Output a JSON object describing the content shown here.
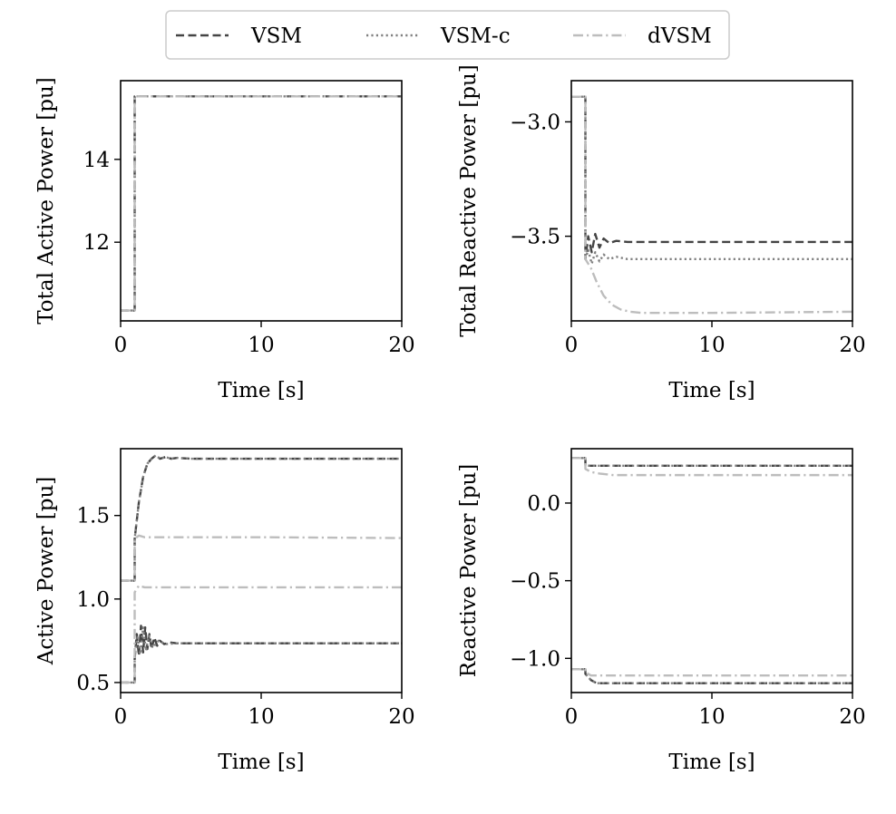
{
  "legend": {
    "entries": [
      {
        "label": "VSM",
        "style": "dashed",
        "color": "#444444"
      },
      {
        "label": "VSM-c",
        "style": "dotted",
        "color": "#808080"
      },
      {
        "label": "dVSM",
        "style": "dashdot",
        "color": "#bdbdbd"
      }
    ]
  },
  "chart_data": [
    {
      "type": "line",
      "xlabel": "Time [s]",
      "ylabel": "Total Active Power [pu]",
      "xlim": [
        0,
        20
      ],
      "ylim": [
        10.1,
        15.9
      ],
      "xticks": [
        0,
        10,
        20
      ],
      "yticks": [
        12,
        14
      ],
      "ytick_labels": [
        "12",
        "14"
      ],
      "series": [
        {
          "name": "VSM",
          "x": [
            0,
            1.0,
            1.0,
            20
          ],
          "y": [
            10.35,
            10.35,
            15.52,
            15.52
          ]
        },
        {
          "name": "VSM-c",
          "x": [
            0,
            1.0,
            1.0,
            20
          ],
          "y": [
            10.35,
            10.35,
            15.52,
            15.52
          ]
        },
        {
          "name": "dVSM",
          "x": [
            0,
            1.0,
            1.0,
            20
          ],
          "y": [
            10.35,
            10.35,
            15.52,
            15.52
          ]
        }
      ]
    },
    {
      "type": "line",
      "xlabel": "Time [s]",
      "ylabel": "Total Reactive Power [pu]",
      "xlim": [
        0,
        20
      ],
      "ylim": [
        -3.87,
        -2.82
      ],
      "xticks": [
        0,
        10,
        20
      ],
      "yticks": [
        -3.5,
        -3.0
      ],
      "ytick_labels": [
        "−3.5",
        "−3.0"
      ],
      "series": [
        {
          "name": "VSM",
          "x": [
            0,
            1.0,
            1.0,
            1.2,
            1.45,
            1.7,
            2.0,
            2.3,
            2.7,
            3.2,
            4,
            6,
            10,
            20
          ],
          "y": [
            -2.89,
            -2.89,
            -3.6,
            -3.5,
            -3.57,
            -3.49,
            -3.55,
            -3.51,
            -3.53,
            -3.52,
            -3.525,
            -3.525,
            -3.525,
            -3.525
          ]
        },
        {
          "name": "VSM-c",
          "x": [
            0,
            1.0,
            1.0,
            1.2,
            1.45,
            1.7,
            2.0,
            2.3,
            2.7,
            3.2,
            4,
            6,
            10,
            20
          ],
          "y": [
            -2.89,
            -2.89,
            -3.6,
            -3.56,
            -3.62,
            -3.57,
            -3.61,
            -3.58,
            -3.6,
            -3.59,
            -3.6,
            -3.6,
            -3.6,
            -3.6
          ]
        },
        {
          "name": "dVSM",
          "x": [
            0,
            1.0,
            1.0,
            1.4,
            1.8,
            2.3,
            2.9,
            3.5,
            4.2,
            5,
            6,
            10,
            20
          ],
          "y": [
            -2.89,
            -2.89,
            -3.6,
            -3.64,
            -3.7,
            -3.76,
            -3.8,
            -3.82,
            -3.83,
            -3.835,
            -3.835,
            -3.835,
            -3.83
          ]
        }
      ]
    },
    {
      "type": "line",
      "xlabel": "Time [s]",
      "ylabel": "Active Power [pu]",
      "xlim": [
        0,
        20
      ],
      "ylim": [
        0.44,
        1.9
      ],
      "xticks": [
        0,
        10,
        20
      ],
      "yticks": [
        0.5,
        1.0,
        1.5
      ],
      "ytick_labels": [
        "0.5",
        "1.0",
        "1.5"
      ],
      "series": [
        {
          "name": "VSM",
          "x": [
            0,
            1.0,
            1.0,
            1.3,
            1.6,
            1.9,
            2.2,
            2.5,
            2.8,
            3.2,
            3.6,
            4,
            5,
            10,
            20
          ],
          "y": [
            1.11,
            1.11,
            1.36,
            1.58,
            1.73,
            1.81,
            1.84,
            1.86,
            1.84,
            1.85,
            1.84,
            1.845,
            1.84,
            1.84,
            1.84
          ]
        },
        {
          "name": "VSM",
          "x": [
            0,
            1.0,
            1.0,
            1.15,
            1.3,
            1.45,
            1.6,
            1.75,
            1.9,
            2.05,
            2.2,
            2.4,
            2.6,
            2.8,
            3.1,
            3.5,
            4,
            5,
            10,
            20
          ],
          "y": [
            0.5,
            0.5,
            0.64,
            0.79,
            0.66,
            0.84,
            0.68,
            0.83,
            0.7,
            0.79,
            0.7,
            0.77,
            0.72,
            0.75,
            0.73,
            0.74,
            0.735,
            0.735,
            0.735,
            0.735
          ]
        },
        {
          "name": "VSM-c",
          "x": [
            0,
            1.0,
            1.0,
            1.3,
            1.6,
            1.9,
            2.2,
            2.5,
            2.8,
            3.2,
            3.6,
            4,
            5,
            10,
            20
          ],
          "y": [
            1.11,
            1.11,
            1.36,
            1.58,
            1.73,
            1.81,
            1.84,
            1.86,
            1.84,
            1.85,
            1.84,
            1.845,
            1.84,
            1.84,
            1.84
          ]
        },
        {
          "name": "VSM-c",
          "x": [
            0,
            1.0,
            1.0,
            1.2,
            1.4,
            1.6,
            1.8,
            2.0,
            2.3,
            2.7,
            3.2,
            4,
            10,
            20
          ],
          "y": [
            0.5,
            0.5,
            0.66,
            0.77,
            0.67,
            0.83,
            0.69,
            0.78,
            0.71,
            0.75,
            0.73,
            0.735,
            0.735,
            0.735
          ]
        },
        {
          "name": "dVSM",
          "x": [
            0,
            1.0,
            1.0,
            1.3,
            1.7,
            2.5,
            4,
            10,
            20
          ],
          "y": [
            1.11,
            1.11,
            1.36,
            1.38,
            1.37,
            1.37,
            1.37,
            1.37,
            1.365
          ]
        },
        {
          "name": "dVSM",
          "x": [
            0,
            1.0,
            1.0,
            1.3,
            1.7,
            2.5,
            4,
            10,
            20
          ],
          "y": [
            0.5,
            0.5,
            1.04,
            1.08,
            1.07,
            1.07,
            1.07,
            1.07,
            1.07
          ]
        }
      ]
    },
    {
      "type": "line",
      "xlabel": "Time [s]",
      "ylabel": "Reactive Power [pu]",
      "xlim": [
        0,
        20
      ],
      "ylim": [
        -1.22,
        0.35
      ],
      "xticks": [
        0,
        10,
        20
      ],
      "yticks": [
        -1.0,
        -0.5,
        0.0
      ],
      "ytick_labels": [
        "−1.0",
        "−0.5",
        "0.0"
      ],
      "series": [
        {
          "name": "VSM",
          "x": [
            0,
            1.0,
            1.0,
            1.4,
            2,
            10,
            20
          ],
          "y": [
            0.29,
            0.29,
            0.24,
            0.24,
            0.24,
            0.24,
            0.24
          ]
        },
        {
          "name": "VSM",
          "x": [
            0,
            1.0,
            1.0,
            1.4,
            1.8,
            2.2,
            10,
            20
          ],
          "y": [
            -1.07,
            -1.07,
            -1.1,
            -1.14,
            -1.16,
            -1.16,
            -1.16,
            -1.16
          ]
        },
        {
          "name": "VSM-c",
          "x": [
            0,
            1.0,
            1.0,
            1.4,
            2,
            10,
            20
          ],
          "y": [
            0.29,
            0.29,
            0.24,
            0.24,
            0.24,
            0.24,
            0.24
          ]
        },
        {
          "name": "VSM-c",
          "x": [
            0,
            1.0,
            1.0,
            1.4,
            1.8,
            2.2,
            10,
            20
          ],
          "y": [
            -1.07,
            -1.07,
            -1.1,
            -1.14,
            -1.16,
            -1.16,
            -1.16,
            -1.16
          ]
        },
        {
          "name": "dVSM",
          "x": [
            0,
            1.0,
            1.0,
            1.4,
            2,
            3,
            10,
            20
          ],
          "y": [
            0.29,
            0.29,
            0.22,
            0.2,
            0.19,
            0.18,
            0.18,
            0.18
          ]
        },
        {
          "name": "dVSM",
          "x": [
            0,
            1.0,
            1.0,
            1.4,
            2,
            3,
            10,
            20
          ],
          "y": [
            -1.07,
            -1.07,
            -1.09,
            -1.11,
            -1.11,
            -1.11,
            -1.11,
            -1.11
          ]
        }
      ]
    }
  ]
}
